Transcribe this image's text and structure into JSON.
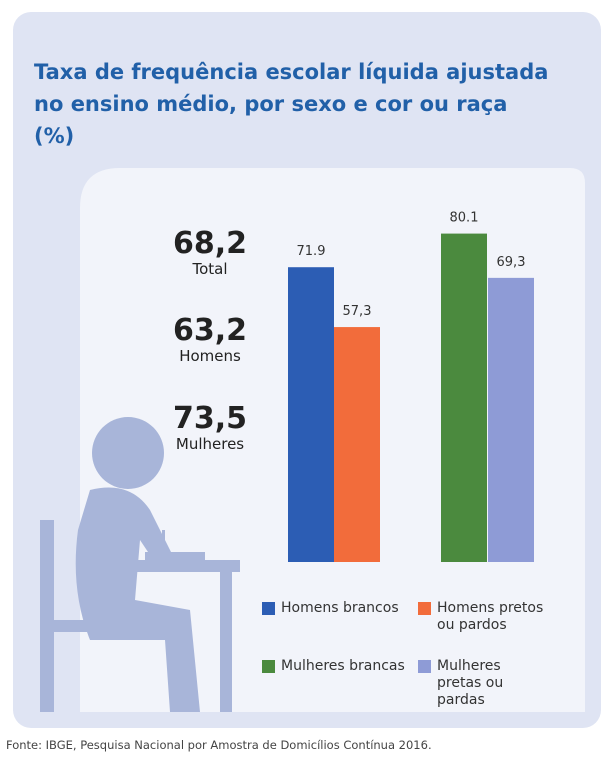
{
  "chart_data": {
    "type": "bar",
    "title": "Taxa de frequência escolar líquida ajustada no ensino médio, por sexo e cor ou raça (%)",
    "stats": [
      {
        "value": "68,2",
        "label": "Total"
      },
      {
        "value": "63,2",
        "label": "Homens"
      },
      {
        "value": "73,5",
        "label": "Mulheres"
      }
    ],
    "series": [
      {
        "name": "Homens brancos",
        "color": "#2c5db4",
        "values": [
          71.9
        ]
      },
      {
        "name": "Homens pretos ou pardos",
        "color": "#f26c3b",
        "values": [
          57.3
        ],
        "value_labels": [
          "57,3"
        ]
      },
      {
        "name": "Mulheres brancas",
        "color": "#4b8a3e",
        "values": [
          80.1
        ]
      },
      {
        "name": "Mulheres pretas ou pardas",
        "color": "#8e9bd6",
        "values": [
          69.3
        ],
        "value_labels": [
          "69,3"
        ]
      }
    ],
    "source": "Fonte: IBGE, Pesquisa Nacional por Amostra de Domicílios Contínua 2016."
  }
}
